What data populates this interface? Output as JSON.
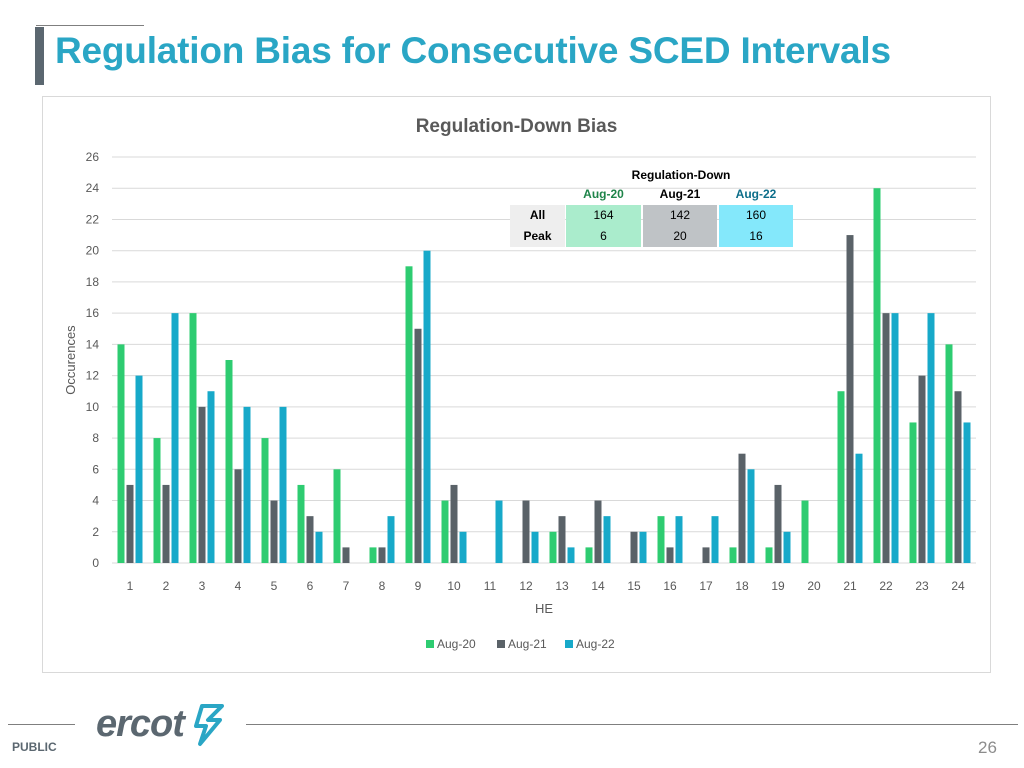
{
  "slide": {
    "title": "Regulation Bias for Consecutive SCED Intervals",
    "footer_label": "PUBLIC",
    "page_number": "26",
    "logo_text": "ercot"
  },
  "inset_table": {
    "header": "Regulation-Down",
    "columns": [
      "Aug-20",
      "Aug-21",
      "Aug-22"
    ],
    "rows": [
      {
        "label": "All",
        "values": [
          "164",
          "142",
          "160"
        ]
      },
      {
        "label": "Peak",
        "values": [
          "6",
          "20",
          "16"
        ]
      }
    ]
  },
  "colors": {
    "title": "#2aa6c5",
    "aug20": "#2ecc71",
    "aug21": "#5a6268",
    "aug22": "#17a9c9",
    "grid": "#d9d9d9",
    "text": "#595959"
  },
  "chart_data": {
    "type": "bar",
    "title": "Regulation-Down Bias",
    "xlabel": "HE",
    "ylabel": "Occurences",
    "ylim": [
      0,
      26
    ],
    "yticks": [
      0,
      2,
      4,
      6,
      8,
      10,
      12,
      14,
      16,
      18,
      20,
      22,
      24,
      26
    ],
    "categories": [
      "1",
      "2",
      "3",
      "4",
      "5",
      "6",
      "7",
      "8",
      "9",
      "10",
      "11",
      "12",
      "13",
      "14",
      "15",
      "16",
      "17",
      "18",
      "19",
      "20",
      "21",
      "22",
      "23",
      "24"
    ],
    "series": [
      {
        "name": "Aug-20",
        "values": [
          14,
          8,
          16,
          13,
          8,
          5,
          6,
          1,
          19,
          4,
          0,
          0,
          2,
          1,
          0,
          3,
          0,
          1,
          1,
          4,
          11,
          24,
          9,
          14
        ]
      },
      {
        "name": "Aug-21",
        "values": [
          5,
          5,
          10,
          6,
          4,
          3,
          1,
          1,
          15,
          5,
          0,
          4,
          3,
          4,
          2,
          1,
          1,
          7,
          5,
          0,
          21,
          16,
          12,
          11
        ]
      },
      {
        "name": "Aug-22",
        "values": [
          12,
          16,
          11,
          10,
          10,
          2,
          0,
          3,
          20,
          2,
          4,
          2,
          1,
          3,
          2,
          3,
          3,
          6,
          2,
          0,
          7,
          16,
          16,
          9
        ]
      }
    ],
    "grid": true,
    "legend_position": "bottom"
  }
}
